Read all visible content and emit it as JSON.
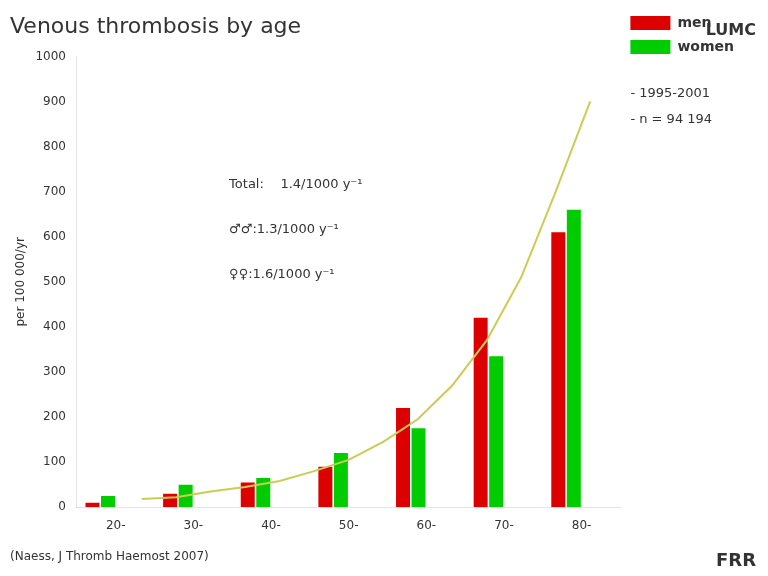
{
  "chart_data": {
    "type": "bar",
    "title": "Venous thrombosis by age",
    "subtitle": "(Naess, J Thromb Haemost 2007)",
    "ylabel": "per 100 000/yr",
    "categories": [
      "20-",
      "30-",
      "40-",
      "50-",
      "60-",
      "70-",
      "80-"
    ],
    "series": [
      {
        "name": "men",
        "color": "#DD0000",
        "values": [
          10,
          30,
          55,
          90,
          220,
          420,
          610
        ]
      },
      {
        "name": "women",
        "color": "#00CC00",
        "values": [
          25,
          50,
          65,
          120,
          175,
          335,
          660
        ]
      },
      {
        "type": "line",
        "color": "#CCCC55",
        "x": [
          20,
          25,
          30,
          35,
          40,
          45,
          50,
          55,
          60,
          65,
          70,
          75,
          80,
          85
        ],
        "values": [
          18,
          22,
          35,
          45,
          58,
          80,
          105,
          145,
          195,
          270,
          370,
          510,
          700,
          900
        ]
      }
    ],
    "xlim": [
      15,
      85
    ],
    "ylim": [
      0,
      1000
    ],
    "yticks": [
      0,
      100,
      200,
      300,
      400,
      500,
      600,
      700,
      800,
      900,
      1000
    ],
    "grid": false,
    "legend": "right",
    "annotations": [
      "Total:    1.4/1000 y⁻¹",
      "♂♂:1.3/1000 y⁻¹",
      "♀♀:1.6/1000 y⁻¹"
    ],
    "info": [
      "- 1995-2001",
      "- n = 94 194"
    ],
    "footer": "FRR",
    "logo": "LUMC"
  }
}
